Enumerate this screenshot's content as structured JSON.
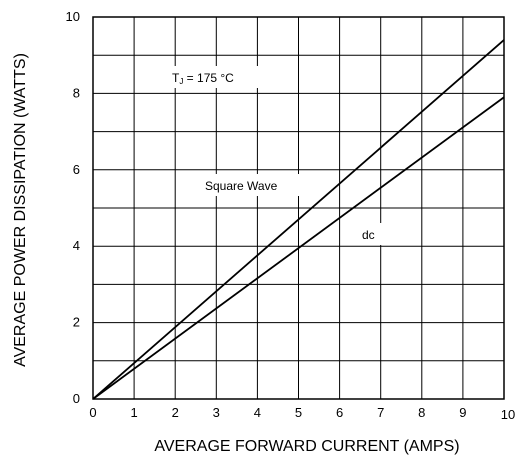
{
  "chart_data": {
    "type": "line",
    "title": "",
    "xlabel": "AVERAGE FORWARD CURRENT (AMPS)",
    "ylabel": "AVERAGE POWER DISSIPATION (WATTS)",
    "xlim": [
      0,
      10
    ],
    "ylim": [
      0,
      10
    ],
    "grid": true,
    "x_ticks": [
      0,
      1,
      2,
      3,
      4,
      5,
      6,
      7,
      8,
      9,
      10
    ],
    "y_ticks": [
      0,
      2,
      4,
      6,
      8,
      10
    ],
    "series": [
      {
        "name": "Square Wave",
        "x": [
          0,
          10
        ],
        "y": [
          0,
          9.4
        ]
      },
      {
        "name": "dc",
        "x": [
          0,
          10
        ],
        "y": [
          0,
          7.9
        ]
      }
    ],
    "annotations": {
      "temperature": "T",
      "temperature_sub": "J",
      "temperature_value": " = 175 °C",
      "square_wave": "Square Wave",
      "dc": "dc"
    },
    "colors": {
      "line": "#000000",
      "grid": "#000000",
      "background": "#ffffff"
    }
  }
}
